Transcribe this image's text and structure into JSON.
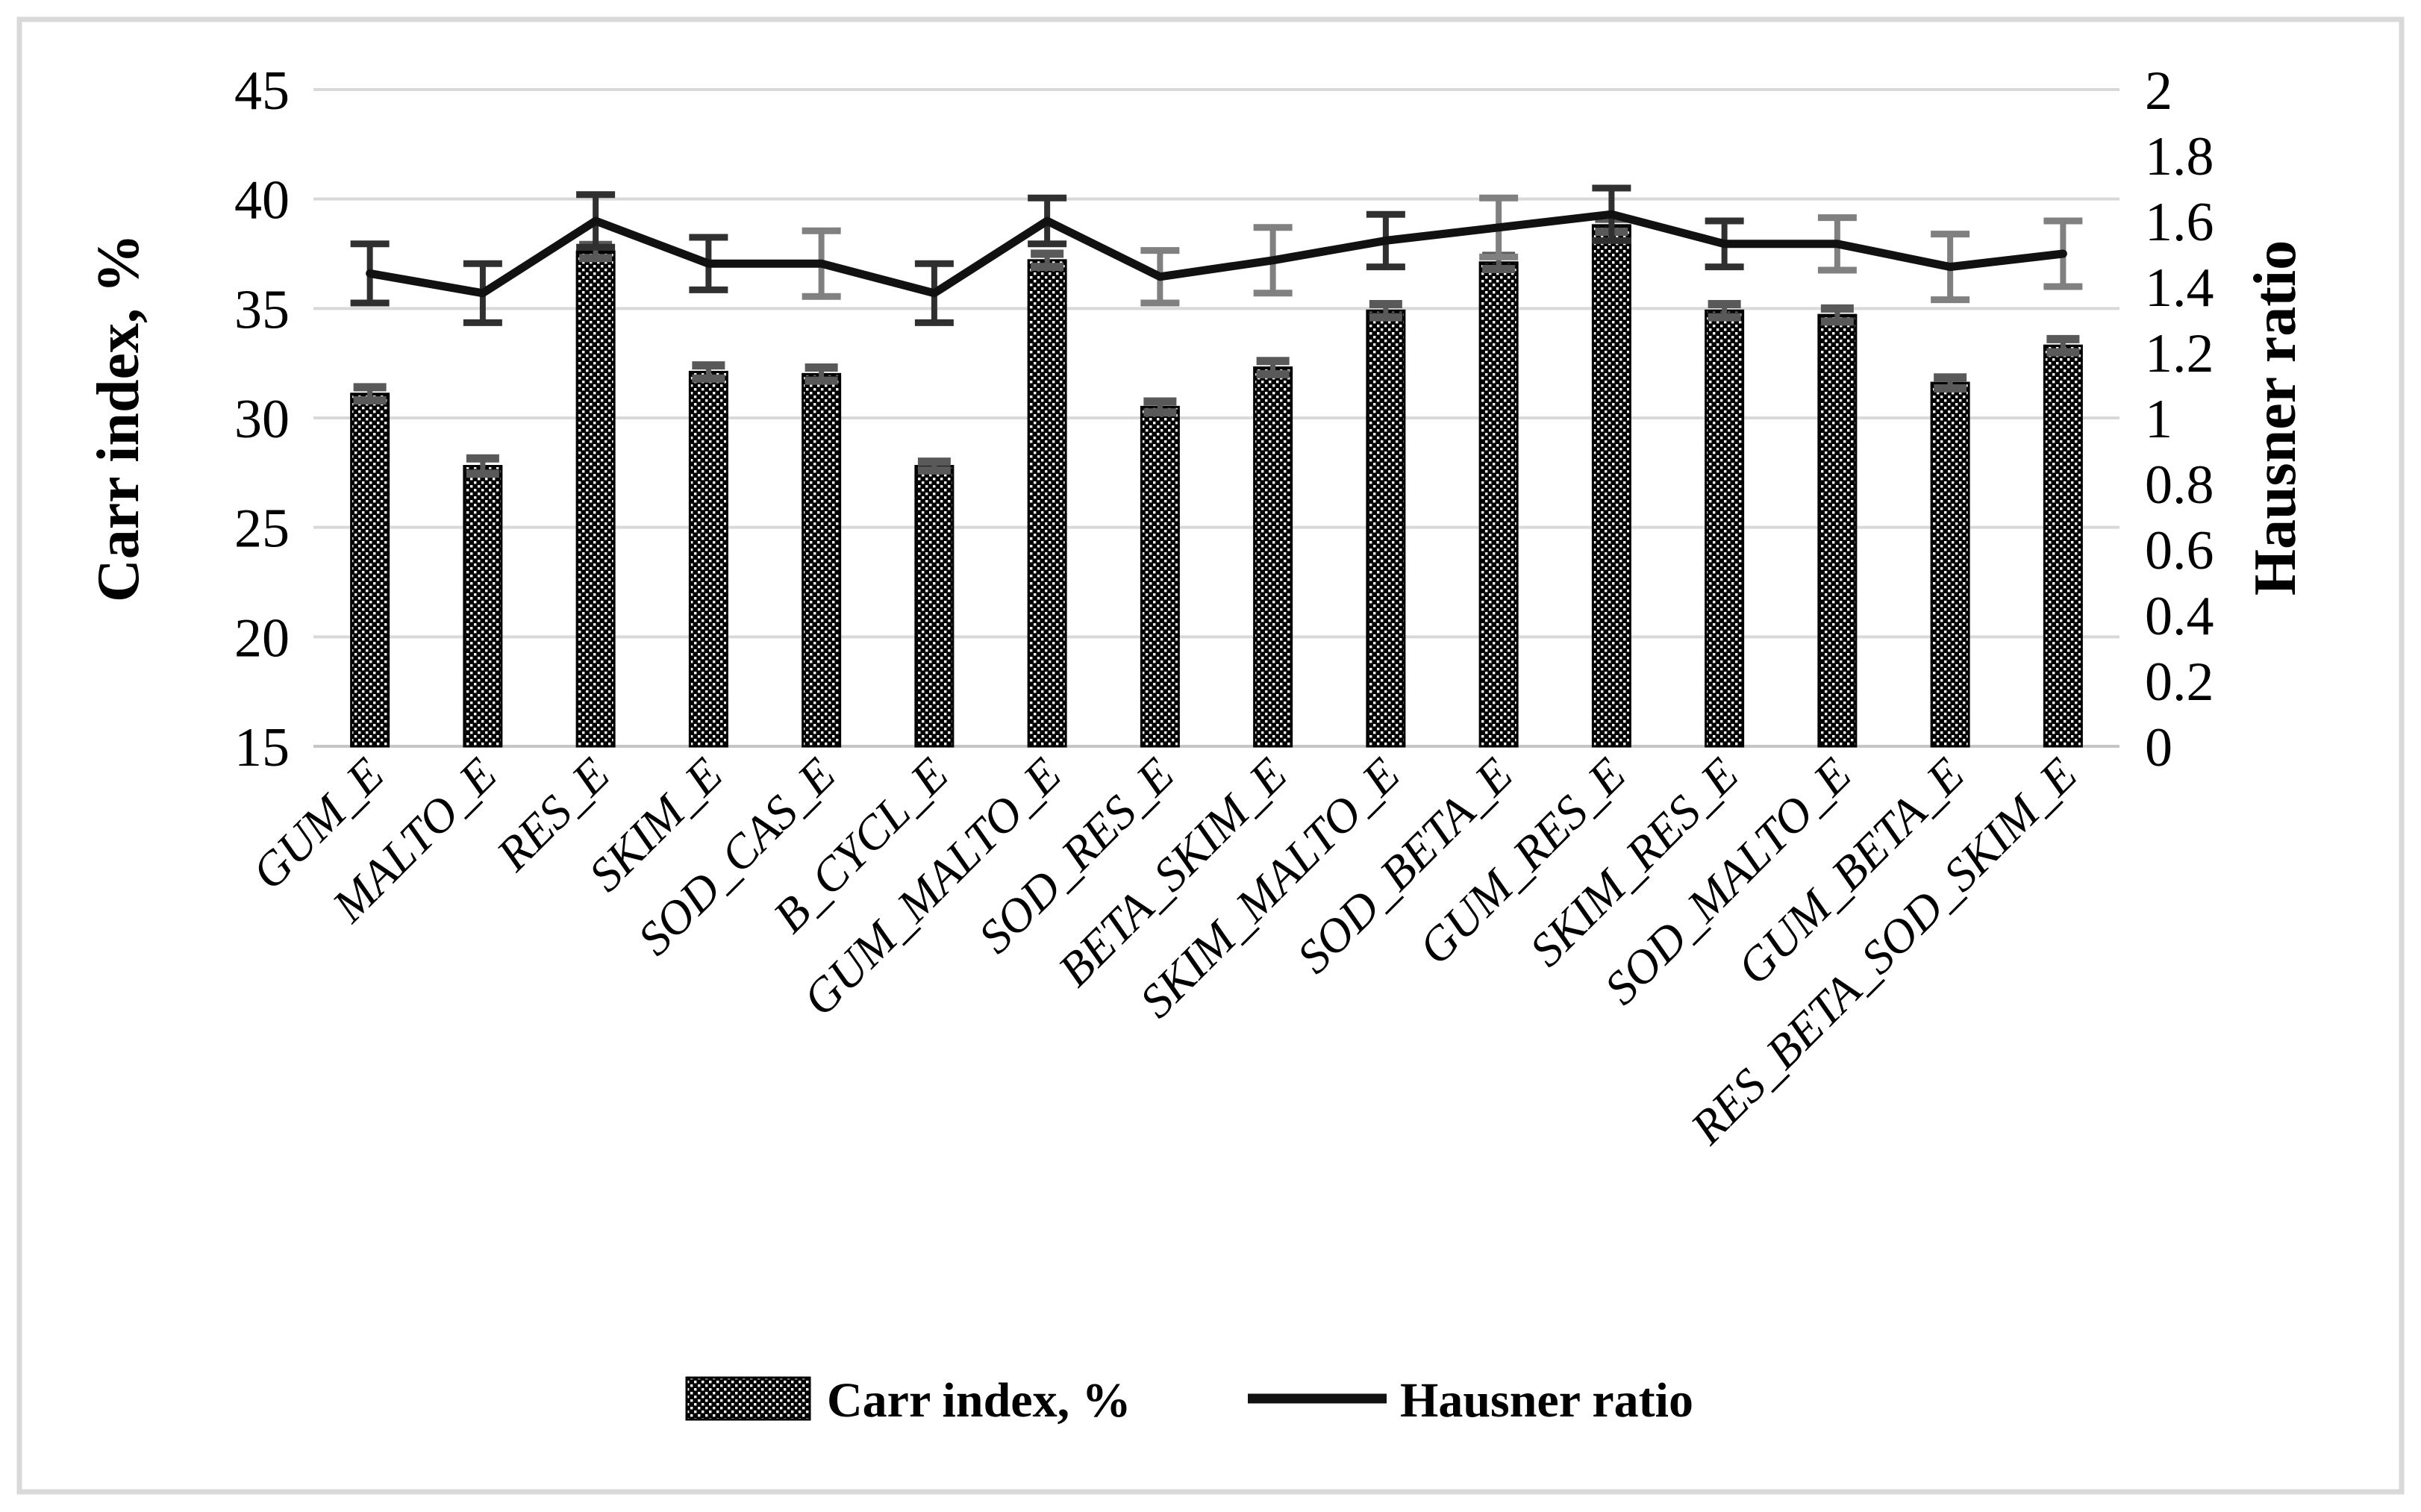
{
  "figure": {
    "background": "#ffffff",
    "border_color": "#d9d9d9"
  },
  "colors": {
    "bar_fill": "#000000",
    "bar_dot": "#ffffff",
    "bar_outline": "#000000",
    "line": "#111111",
    "bar_error": "#595959",
    "line_error_dark": "#303030",
    "line_error_gray": "#808080",
    "gridline": "#d9d9d9",
    "axis_line": "#c6c6c6",
    "text": "#000000"
  },
  "chart_data": {
    "type": "bar+line",
    "title": "",
    "categories": [
      "GUM_E",
      "MALTO_E",
      "RES_E",
      "SKIM_E",
      "SOD_CAS_E",
      "B_CYCL_E",
      "GUM_MALTO_E",
      "SOD_RES_E",
      "BETA_SKIM_E",
      "SKIM_MALTO_E",
      "SOD_BETA_E",
      "GUM_RES_E",
      "SKIM_RES_E",
      "SOD_MALTO_E",
      "GUM_BETA_E",
      "RES_BETA_SOD_SKIM_E"
    ],
    "series": [
      {
        "name": "Carr index, %",
        "type": "bar",
        "axis": "left",
        "marker": "dot-pattern-swatch",
        "values": [
          31.1,
          27.8,
          37.6,
          32.1,
          32.0,
          27.8,
          37.2,
          30.5,
          32.3,
          34.9,
          37.1,
          38.8,
          34.9,
          34.7,
          31.6,
          33.3
        ],
        "errors": [
          0.3,
          0.35,
          0.3,
          0.3,
          0.3,
          0.2,
          0.3,
          0.25,
          0.3,
          0.3,
          0.3,
          0.3,
          0.3,
          0.3,
          0.25,
          0.3
        ]
      },
      {
        "name": "Hausner ratio",
        "type": "line",
        "axis": "right",
        "marker": "line-swatch",
        "values": [
          1.44,
          1.38,
          1.6,
          1.47,
          1.47,
          1.38,
          1.6,
          1.43,
          1.48,
          1.54,
          1.58,
          1.62,
          1.53,
          1.53,
          1.46,
          1.5
        ],
        "errors": [
          0.09,
          0.09,
          0.08,
          0.08,
          0.1,
          0.09,
          0.07,
          0.08,
          0.1,
          0.08,
          0.09,
          0.08,
          0.07,
          0.08,
          0.1,
          0.1
        ],
        "error_colors": [
          "#303030",
          "#303030",
          "#303030",
          "#303030",
          "#808080",
          "#303030",
          "#303030",
          "#808080",
          "#808080",
          "#303030",
          "#808080",
          "#303030",
          "#303030",
          "#808080",
          "#808080",
          "#808080"
        ]
      }
    ],
    "left_axis": {
      "title": "Carr index, %",
      "min": 15,
      "max": 45,
      "step": 5,
      "tick_labels": [
        "45",
        "40",
        "35",
        "30",
        "25",
        "20",
        "15"
      ]
    },
    "right_axis": {
      "title": "Hausner ratio",
      "min": 0,
      "max": 2,
      "step": 0.2,
      "tick_labels": [
        "2",
        "1.8",
        "1.6",
        "1.4",
        "1.2",
        "1",
        "0.8",
        "0.6",
        "0.4",
        "0.2",
        "0"
      ]
    },
    "grid": true,
    "legend_position": "bottom"
  },
  "legend": {
    "items": [
      {
        "label": "Carr index, %",
        "marker": "dot-pattern-swatch"
      },
      {
        "label": "Hausner ratio",
        "marker": "line-swatch"
      }
    ]
  }
}
